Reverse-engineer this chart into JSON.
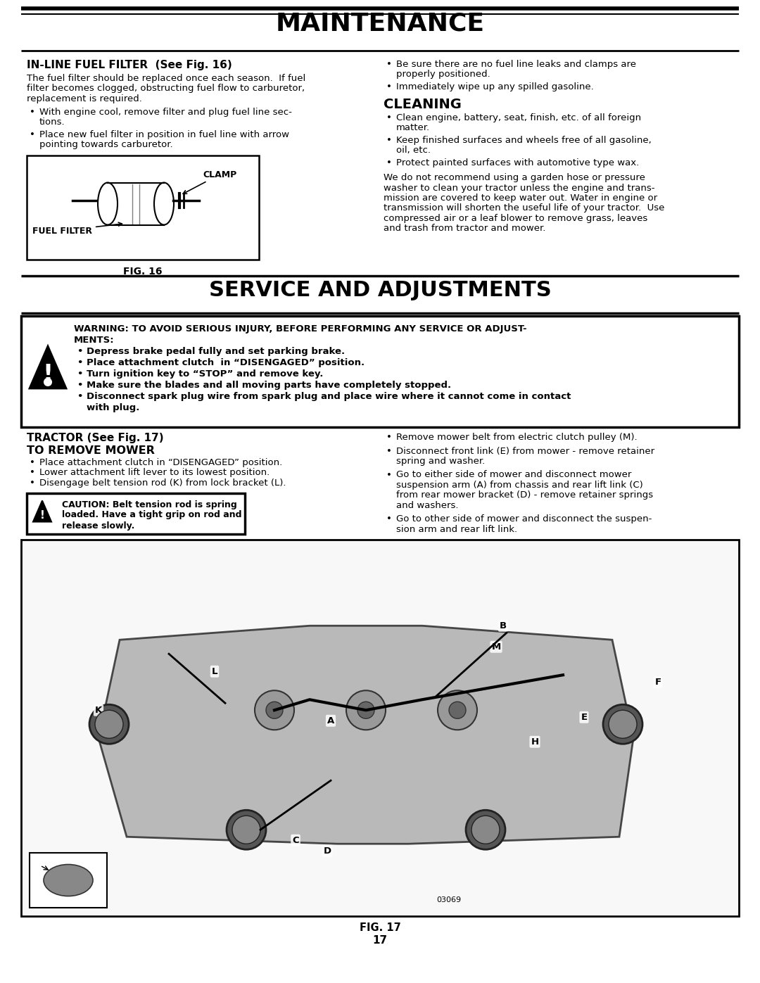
{
  "title_maintenance": "MAINTENANCE",
  "title_service": "SERVICE AND ADJUSTMENTS",
  "fig_caption1": "FIG. 16",
  "fig_caption2": "FIG. 17",
  "page_number": "17",
  "background_color": "#ffffff",
  "section1_heading": "IN-LINE FUEL FILTER  (See Fig. 16)",
  "section1_body_lines": [
    "The fuel filter should be replaced once each season.  If fuel",
    "filter becomes clogged, obstructing fuel flow to carburetor,",
    "replacement is required."
  ],
  "section1_bullets": [
    [
      "With engine cool, remove filter and plug fuel line sec-",
      "tions."
    ],
    [
      "Place new fuel filter in position in fuel line with arrow",
      "pointing towards carburetor."
    ]
  ],
  "section1_right_bullets": [
    [
      "Be sure there are no fuel line leaks and clamps are",
      "properly positioned."
    ],
    [
      "Immediately wipe up any spilled gasoline."
    ]
  ],
  "cleaning_heading": "CLEANING",
  "cleaning_bullets": [
    [
      "Clean engine, battery, seat, finish, etc. of all foreign",
      "matter."
    ],
    [
      "Keep finished surfaces and wheels free of all gasoline,",
      "oil, etc."
    ],
    [
      "Protect painted surfaces with automotive type wax."
    ]
  ],
  "cleaning_body_lines": [
    "We do not recommend using a garden hose or pressure",
    "washer to clean your tractor unless the engine and trans-",
    "mission are covered to keep water out. Water in engine or",
    "transmission will shorten the useful life of your tractor.  Use",
    "compressed air or a leaf blower to remove grass, leaves",
    "and trash from tractor and mower."
  ],
  "warning_line1": "WARNING: TO AVOID SERIOUS INJURY, BEFORE PERFORMING ANY SERVICE OR ADJUST-",
  "warning_line2": "MENTS:",
  "warning_bullets": [
    "Depress brake pedal fully and set parking brake.",
    "Place attachment clutch  in “DISENGAGED” position.",
    "Turn ignition key to “STOP” and remove key.",
    "Make sure the blades and all moving parts have completely stopped.",
    [
      "Disconnect spark plug wire from spark plug and place wire where it cannot come in contact",
      "with plug."
    ]
  ],
  "tractor_heading": "TRACTOR (See Fig. 17)",
  "remove_mower_heading": "TO REMOVE MOWER",
  "tractor_bullets_left": [
    "Place attachment clutch in “DISENGAGED” position.",
    "Lower attachment lift lever to its lowest position.",
    "Disengage belt tension rod (K) from lock bracket (L)."
  ],
  "caution_lines": [
    "CAUTION: Belt tension rod is spring",
    "loaded. Have a tight grip on rod and",
    "release slowly."
  ],
  "tractor_bullets_right": [
    [
      "Remove mower belt from electric clutch pulley (M)."
    ],
    [
      "Disconnect front link (E) from mower - remove retainer",
      "spring and washer."
    ],
    [
      "Go to either side of mower and disconnect mower",
      "suspension arm (A) from chassis and rear lift link (C)",
      "from rear mower bracket (D) - remove retainer springs",
      "and washers."
    ],
    [
      "Go to other side of mower and disconnect the suspen-",
      "sion arm and rear lift link."
    ]
  ],
  "part_number": "03069"
}
